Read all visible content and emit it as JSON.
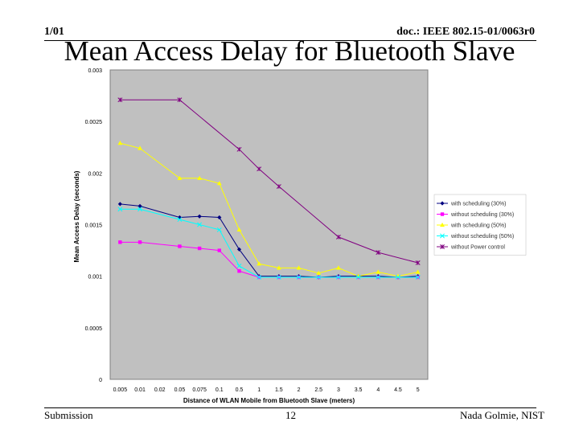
{
  "header": {
    "date": "1/01",
    "doc": "doc.: IEEE 802.15-01/0063r0"
  },
  "slide_title": "Mean Access Delay for Bluetooth Slave",
  "footer": {
    "left": "Submission",
    "page": "12",
    "author": "Nada Golmie, NIST"
  },
  "colors": {
    "plot_bg": "#c0c0c0",
    "navy": "#000080",
    "magenta": "#ff00ff",
    "yellow": "#ffff00",
    "cyan": "#00ffff",
    "purple": "#800080"
  },
  "chart_data": {
    "type": "line",
    "title": "",
    "xlabel": "Distance of WLAN Mobile from Bluetooth Slave (meters)",
    "ylabel": "Mean Access Delay (seconds)",
    "categories": [
      "0.005",
      "0.01",
      "0.02",
      "0.05",
      "0.075",
      "0.1",
      "0.5",
      "1",
      "1.5",
      "2",
      "2.5",
      "3",
      "3.5",
      "4",
      "4.5",
      "5"
    ],
    "yticks": [
      "0",
      "0.0005",
      "0.001",
      "0.0015",
      "0.002",
      "0.0025",
      "0.003"
    ],
    "ylim": [
      0,
      0.003
    ],
    "grid": false,
    "legend_position": "right",
    "series": [
      {
        "name": "with scheduling (30%)",
        "color": "#000080",
        "marker": "diamond",
        "values": [
          0.0017,
          0.00168,
          null,
          0.00157,
          0.00158,
          0.00157,
          0.00126,
          0.001,
          0.001,
          0.001,
          0.00099,
          0.001,
          0.001,
          0.001,
          0.00099,
          0.001
        ]
      },
      {
        "name": "without scheduling (30%)",
        "color": "#ff00ff",
        "marker": "square",
        "values": [
          0.00133,
          0.00133,
          null,
          0.00129,
          0.00127,
          0.00125,
          0.00105,
          0.00099,
          0.00099,
          0.00099,
          0.00099,
          0.00099,
          0.00099,
          0.00099,
          0.00099,
          0.00099
        ]
      },
      {
        "name": "with scheduling (50%)",
        "color": "#ffff00",
        "marker": "triangle",
        "values": [
          0.00229,
          0.00224,
          null,
          0.00195,
          0.00195,
          0.0019,
          0.00145,
          0.00112,
          0.00108,
          0.00108,
          0.00103,
          0.00108,
          0.001,
          0.00104,
          0.001,
          0.00104
        ]
      },
      {
        "name": "without scheduling (50%)",
        "color": "#00ffff",
        "marker": "x",
        "values": [
          0.00165,
          0.00165,
          null,
          0.00155,
          0.0015,
          0.00145,
          0.0011,
          0.00099,
          0.00099,
          0.00099,
          0.00099,
          0.00099,
          0.00099,
          0.00099,
          0.00099,
          0.00099
        ]
      },
      {
        "name": "without Power control",
        "color": "#800080",
        "marker": "star",
        "values": [
          0.00271,
          null,
          null,
          0.00271,
          null,
          null,
          0.00223,
          0.00204,
          0.00187,
          null,
          null,
          0.00138,
          null,
          0.00123,
          null,
          0.00113
        ]
      }
    ]
  }
}
